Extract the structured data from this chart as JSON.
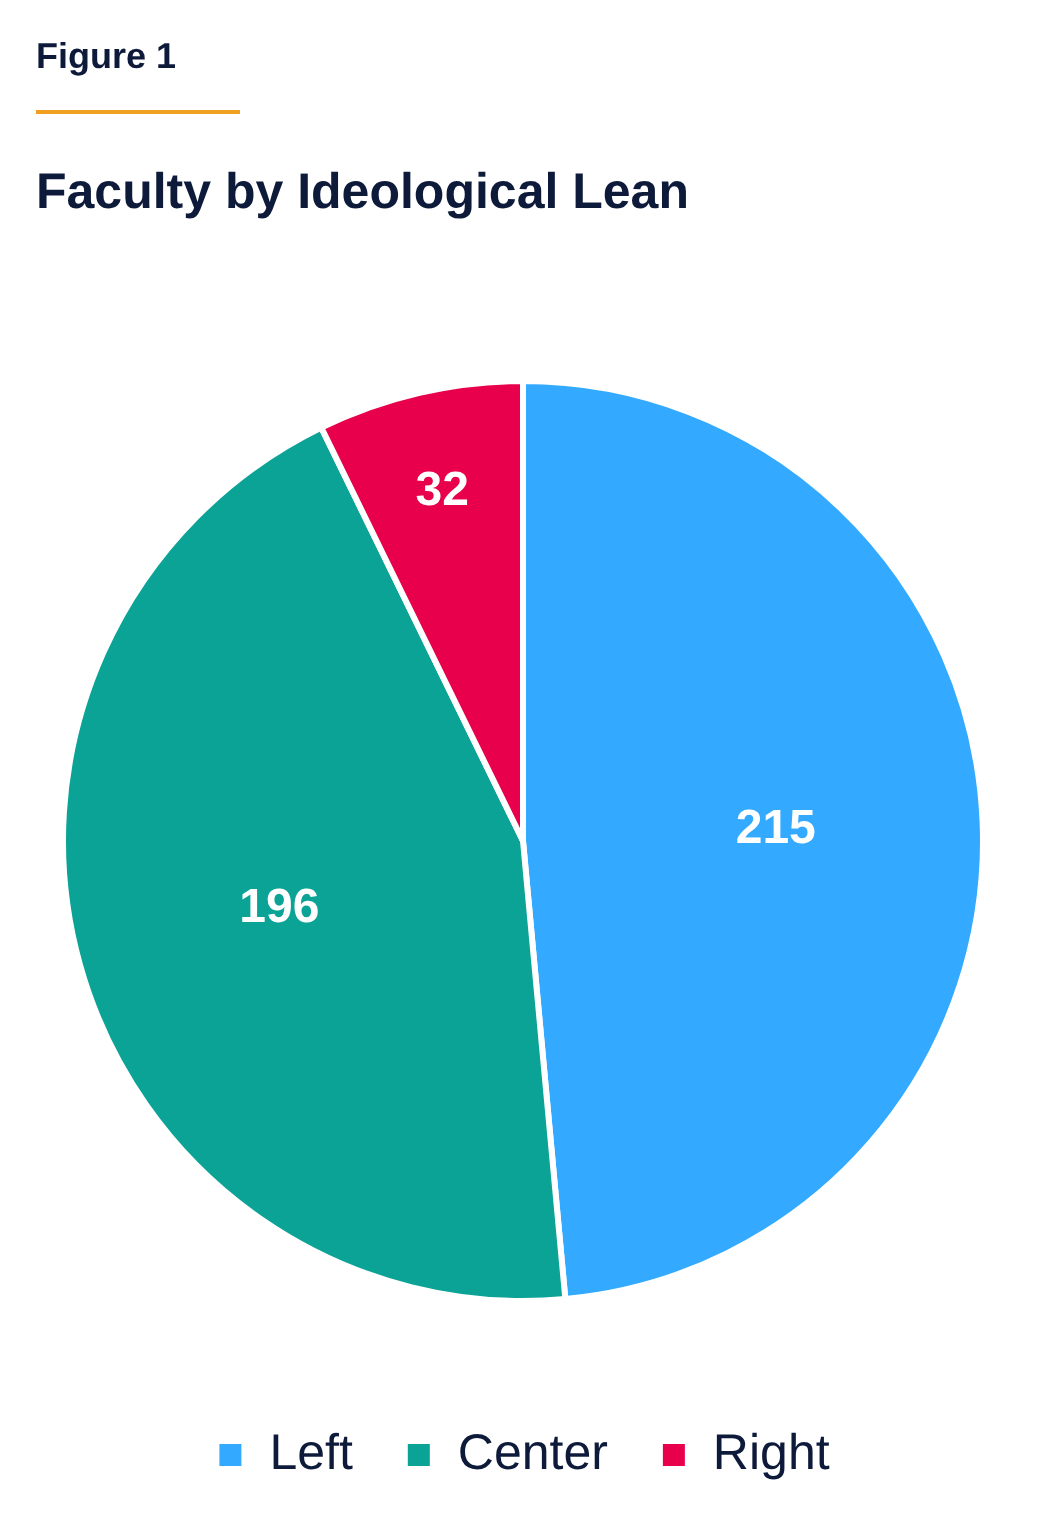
{
  "chart_data": {
    "type": "pie",
    "title": "Faculty by Ideological Lean",
    "annotations": [
      "Figure 1"
    ],
    "categories": [
      "Left",
      "Center",
      "Right"
    ],
    "values": [
      215,
      196,
      32
    ],
    "colors": [
      "#33aaff",
      "#0aa396",
      "#e8004c"
    ],
    "data_labels": true,
    "legend": "bottom"
  }
}
